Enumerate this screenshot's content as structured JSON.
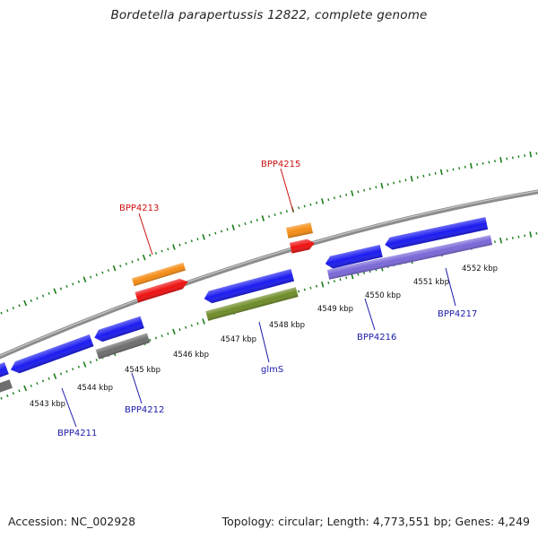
{
  "map": {
    "title": "Bordetella parapertussis 12822, complete genome",
    "accession": "Accession: NC_002928",
    "topology": "Topology: circular; Length: 4,773,551 bp; Genes: 4,249",
    "colors": {
      "backbone": "#8c8c8c",
      "ticks": "#1a7d1a",
      "blue_gene": "#1b1bf0",
      "gray_gene": "#6e6e6e",
      "green_gene": "#6e8c28",
      "lavender_gene": "#7a68d8",
      "orange_gene": "#f58c14",
      "red_gene": "#ee1111",
      "label_red": "#cc1111",
      "label_blue": "#1a1aaa"
    },
    "kbp_ticks": [
      "4543 kbp",
      "4544 kbp",
      "4545 kbp",
      "4546 kbp",
      "4547 kbp",
      "4548 kbp",
      "4549 kbp",
      "4550 kbp",
      "4551 kbp",
      "4552 kbp"
    ],
    "gene_labels": [
      {
        "name": "BPP4211",
        "color": "label_blue"
      },
      {
        "name": "BPP4212",
        "color": "label_blue"
      },
      {
        "name": "BPP4213",
        "color": "label_red"
      },
      {
        "name": "glmS",
        "color": "label_blue"
      },
      {
        "name": "BPP4215",
        "color": "label_red"
      },
      {
        "name": "BPP4216",
        "color": "label_blue"
      },
      {
        "name": "BPP4217",
        "color": "label_blue"
      }
    ]
  }
}
